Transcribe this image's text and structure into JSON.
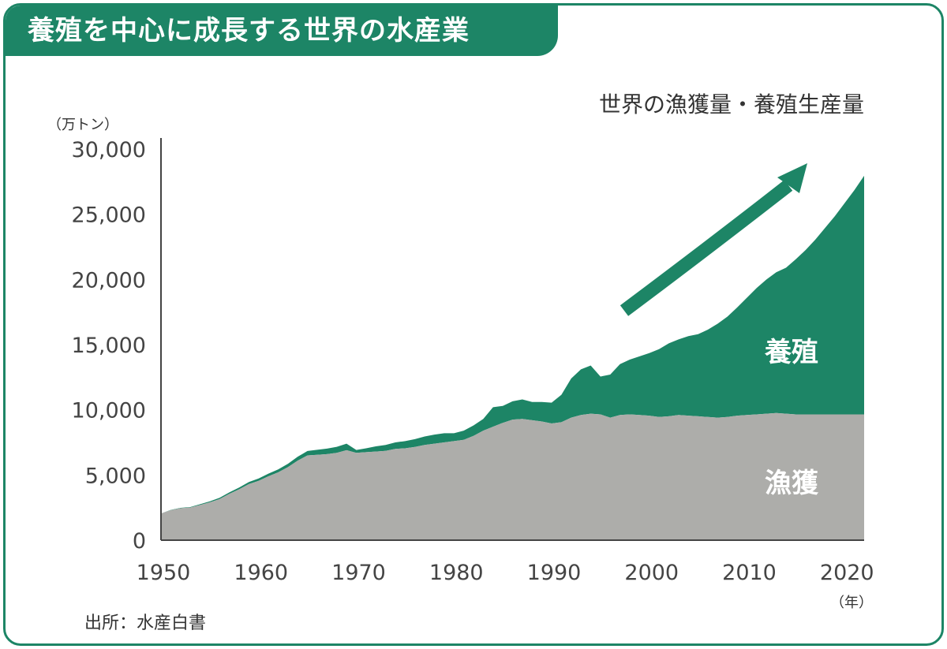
{
  "title": "養殖を中心に成長する世界の水産業",
  "source": "出所：水産白書",
  "colors": {
    "accent": "#1d8566",
    "capture": "#adadaa",
    "axis": "#444444",
    "text": "#333333"
  },
  "chart_data": {
    "type": "area",
    "stacked": true,
    "title": "世界の漁獲量・養殖生産量",
    "ylabel": "（万トン）",
    "xlabel": "（年）",
    "ylim": [
      0,
      30000
    ],
    "xlim": [
      1950,
      2022
    ],
    "yticks": [
      0,
      5000,
      10000,
      15000,
      20000,
      25000,
      30000
    ],
    "ytick_labels": [
      "0",
      "5,000",
      "10,000",
      "15,000",
      "20,000",
      "25,000",
      "30,000"
    ],
    "xticks": [
      1950,
      1960,
      1970,
      1980,
      1990,
      2000,
      2010,
      2020
    ],
    "x": [
      1950,
      1951,
      1952,
      1953,
      1954,
      1955,
      1956,
      1957,
      1958,
      1959,
      1960,
      1961,
      1962,
      1963,
      1964,
      1965,
      1966,
      1967,
      1968,
      1969,
      1970,
      1971,
      1972,
      1973,
      1974,
      1975,
      1976,
      1977,
      1978,
      1979,
      1980,
      1981,
      1982,
      1983,
      1984,
      1985,
      1986,
      1987,
      1988,
      1989,
      1990,
      1991,
      1992,
      1993,
      1994,
      1995,
      1996,
      1997,
      1998,
      1999,
      2000,
      2001,
      2002,
      2003,
      2004,
      2005,
      2006,
      2007,
      2008,
      2009,
      2010,
      2011,
      2012,
      2013,
      2014,
      2015,
      2016,
      2017,
      2018,
      2019,
      2020,
      2021,
      2022
    ],
    "series": [
      {
        "name": "漁獲",
        "values": [
          2050,
          2300,
          2450,
          2500,
          2700,
          2900,
          3150,
          3550,
          3900,
          4300,
          4550,
          4900,
          5200,
          5600,
          6100,
          6500,
          6550,
          6600,
          6700,
          6900,
          6700,
          6750,
          6800,
          6850,
          7000,
          7050,
          7150,
          7300,
          7400,
          7500,
          7600,
          7700,
          8000,
          8400,
          8700,
          9000,
          9250,
          9300,
          9200,
          9100,
          8950,
          9050,
          9400,
          9600,
          9700,
          9650,
          9400,
          9600,
          9650,
          9600,
          9550,
          9450,
          9500,
          9600,
          9550,
          9500,
          9450,
          9400,
          9450,
          9550,
          9600,
          9650,
          9700,
          9750,
          9700,
          9650,
          9650,
          9650,
          9650,
          9650,
          9650,
          9650,
          9650
        ]
      },
      {
        "name": "養殖",
        "values": [
          0,
          20,
          30,
          40,
          60,
          80,
          100,
          120,
          140,
          160,
          180,
          200,
          230,
          260,
          300,
          340,
          380,
          420,
          460,
          500,
          220,
          300,
          400,
          450,
          500,
          550,
          600,
          650,
          700,
          700,
          600,
          700,
          800,
          900,
          1500,
          1300,
          1400,
          1500,
          1400,
          1500,
          1600,
          2100,
          3000,
          3500,
          3700,
          2900,
          3300,
          3900,
          4200,
          4500,
          4800,
          5200,
          5600,
          5800,
          6100,
          6300,
          6700,
          7200,
          7700,
          8300,
          9000,
          9700,
          10300,
          10800,
          11200,
          11900,
          12600,
          13400,
          14300,
          15200,
          16200,
          17200,
          18300
        ]
      }
    ],
    "annotations": [
      {
        "text": "養殖",
        "series": "養殖"
      },
      {
        "text": "漁獲",
        "series": "漁獲"
      }
    ]
  }
}
